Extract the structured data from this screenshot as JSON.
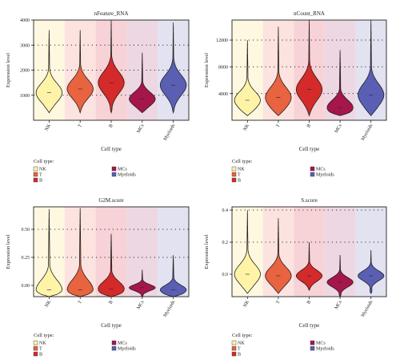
{
  "cell_types": [
    "NK",
    "T",
    "B",
    "MCs",
    "Myeloids"
  ],
  "colors": {
    "NK": "#FFF3A8",
    "T": "#E8633F",
    "B": "#D42A2A",
    "MCs": "#A5164A",
    "Myeloids": "#5A5FB4"
  },
  "band_colors": {
    "NK": "#FFF8E1",
    "T": "#FCE3E0",
    "B": "#F7D2D6",
    "MCs": "#EDD7E2",
    "Myeloids": "#E2E2F0"
  },
  "legend": {
    "title": "Cell type:",
    "items": [
      "NK",
      "MCs",
      "T",
      "Myeloids",
      "B"
    ]
  },
  "chart_data": [
    {
      "type": "violin",
      "title": "nFeature_RNA",
      "xlabel": "Cell type",
      "ylabel": "Expression level",
      "categories": [
        "NK",
        "T",
        "B",
        "MCs",
        "Myeloids"
      ],
      "ylim": [
        0,
        4000
      ],
      "yticks": [
        1000,
        2000,
        3000,
        4000
      ],
      "ytick_labels": [
        "1000",
        "2000",
        "3000",
        "4000"
      ],
      "dotted_grid": [
        4000,
        3000,
        2000,
        1000
      ],
      "series": [
        {
          "category": "NK",
          "min": 300,
          "max": 3600,
          "median": 1100
        },
        {
          "category": "T",
          "min": 300,
          "max": 3600,
          "median": 1250
        },
        {
          "category": "B",
          "min": 300,
          "max": 4000,
          "median": 1500
        },
        {
          "category": "MCs",
          "min": 300,
          "max": 2700,
          "median": 850
        },
        {
          "category": "Myeloids",
          "min": 300,
          "max": 3900,
          "median": 1400
        }
      ]
    },
    {
      "type": "violin",
      "title": "nCount_RNA",
      "xlabel": "Cell type",
      "ylabel": "Expression level",
      "categories": [
        "NK",
        "T",
        "B",
        "MCs",
        "Myeloids"
      ],
      "ylim": [
        0,
        15000
      ],
      "yticks": [
        4000,
        8000,
        12000
      ],
      "ytick_labels": [
        "4000",
        "8000",
        "12000"
      ],
      "dotted_grid": [
        12000,
        8000,
        4000
      ],
      "series": [
        {
          "category": "NK",
          "min": 700,
          "max": 12000,
          "median": 3000
        },
        {
          "category": "T",
          "min": 700,
          "max": 14000,
          "median": 3400
        },
        {
          "category": "B",
          "min": 700,
          "max": 15000,
          "median": 4600
        },
        {
          "category": "MCs",
          "min": 700,
          "max": 10500,
          "median": 1900
        },
        {
          "category": "Myeloids",
          "min": 700,
          "max": 15000,
          "median": 3800
        }
      ]
    },
    {
      "type": "violin",
      "title": "G2M.score",
      "xlabel": "Cell type",
      "ylabel": "Expression level",
      "categories": [
        "NK",
        "T",
        "B",
        "MCs",
        "Myeloids"
      ],
      "ylim": [
        -0.1,
        0.7
      ],
      "yticks": [
        0.0,
        0.25,
        0.5
      ],
      "ytick_labels": [
        "0.00",
        "0.25",
        "0.50"
      ],
      "dotted_grid": [
        0.5,
        0.25
      ],
      "series": [
        {
          "category": "NK",
          "min": -0.1,
          "max": 0.68,
          "median": -0.04
        },
        {
          "category": "T",
          "min": -0.1,
          "max": 0.69,
          "median": -0.04
        },
        {
          "category": "B",
          "min": -0.1,
          "max": 0.46,
          "median": -0.03
        },
        {
          "category": "MCs",
          "min": -0.1,
          "max": 0.14,
          "median": -0.02
        },
        {
          "category": "Myeloids",
          "min": -0.1,
          "max": 0.27,
          "median": -0.04
        }
      ]
    },
    {
      "type": "violin",
      "title": "S.score",
      "xlabel": "Cell type",
      "ylabel": "Expression level",
      "categories": [
        "NK",
        "T",
        "B",
        "MCs",
        "Myeloids"
      ],
      "ylim": [
        -0.14,
        0.42
      ],
      "yticks": [
        0.0,
        0.2,
        0.4
      ],
      "ytick_labels": [
        "0.0",
        "0.2",
        "0.4"
      ],
      "dotted_grid": [
        0.4,
        0.2
      ],
      "series": [
        {
          "category": "NK",
          "min": -0.12,
          "max": 0.4,
          "median": 0.0
        },
        {
          "category": "T",
          "min": -0.12,
          "max": 0.35,
          "median": -0.01
        },
        {
          "category": "B",
          "min": -0.1,
          "max": 0.2,
          "median": -0.01
        },
        {
          "category": "MCs",
          "min": -0.14,
          "max": 0.12,
          "median": -0.05
        },
        {
          "category": "Myeloids",
          "min": -0.12,
          "max": 0.15,
          "median": -0.01
        }
      ]
    }
  ]
}
